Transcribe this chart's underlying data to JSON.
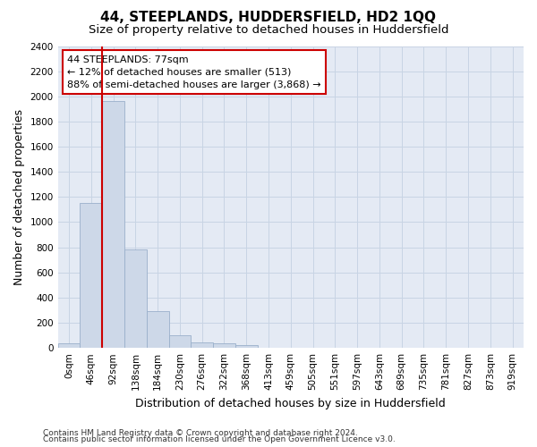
{
  "title": "44, STEEPLANDS, HUDDERSFIELD, HD2 1QQ",
  "subtitle": "Size of property relative to detached houses in Huddersfield",
  "xlabel": "Distribution of detached houses by size in Huddersfield",
  "ylabel": "Number of detached properties",
  "footnote1": "Contains HM Land Registry data © Crown copyright and database right 2024.",
  "footnote2": "Contains public sector information licensed under the Open Government Licence v3.0.",
  "bar_labels": [
    "0sqm",
    "46sqm",
    "92sqm",
    "138sqm",
    "184sqm",
    "230sqm",
    "276sqm",
    "322sqm",
    "368sqm",
    "413sqm",
    "459sqm",
    "505sqm",
    "551sqm",
    "597sqm",
    "643sqm",
    "689sqm",
    "735sqm",
    "781sqm",
    "827sqm",
    "873sqm",
    "919sqm"
  ],
  "bar_values": [
    40,
    1150,
    1960,
    780,
    295,
    100,
    45,
    35,
    20,
    0,
    0,
    0,
    0,
    0,
    0,
    0,
    0,
    0,
    0,
    0,
    0
  ],
  "bar_color": "#cdd8e8",
  "bar_edge_color": "#9ab0cb",
  "vline_x": 1.5,
  "vline_color": "#cc0000",
  "annotation_text_line1": "44 STEEPLANDS: 77sqm",
  "annotation_text_line2": "← 12% of detached houses are smaller (513)",
  "annotation_text_line3": "88% of semi-detached houses are larger (3,868) →",
  "annotation_box_color": "#cc0000",
  "ylim": [
    0,
    2400
  ],
  "yticks": [
    0,
    200,
    400,
    600,
    800,
    1000,
    1200,
    1400,
    1600,
    1800,
    2000,
    2200,
    2400
  ],
  "grid_color": "#c8d4e4",
  "bg_color": "#e4eaf4",
  "title_fontsize": 11,
  "subtitle_fontsize": 9.5,
  "axis_label_fontsize": 9,
  "tick_fontsize": 7.5,
  "annotation_fontsize": 8,
  "footnote_fontsize": 6.5
}
